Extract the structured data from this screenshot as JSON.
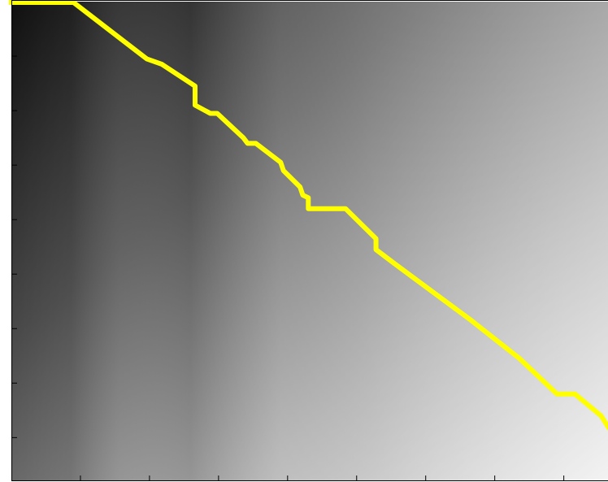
{
  "chart_data": {
    "type": "line",
    "x": [
      0,
      45,
      98,
      109,
      133,
      133,
      144,
      149,
      168,
      171,
      177,
      195,
      197,
      209,
      211,
      215,
      215,
      242,
      264,
      264,
      277,
      333,
      368,
      395,
      408,
      427,
      432
    ],
    "series": [
      {
        "color": "#ffff00",
        "values": [
          0.3,
          0.3,
          21,
          23,
          31,
          38,
          41,
          41,
          50,
          52,
          52,
          59,
          62,
          68,
          71,
          72,
          76,
          76,
          87,
          91,
          96,
          117,
          131,
          144,
          144,
          152,
          156
        ]
      }
    ],
    "xlim": [
      0,
      432
    ],
    "ylim": [
      0,
      176
    ],
    "y_inverted": true,
    "xticks": [
      50,
      100,
      150,
      200,
      250,
      300,
      350,
      400
    ],
    "yticks": [
      20,
      40,
      60,
      80,
      100,
      120,
      140,
      160
    ]
  }
}
